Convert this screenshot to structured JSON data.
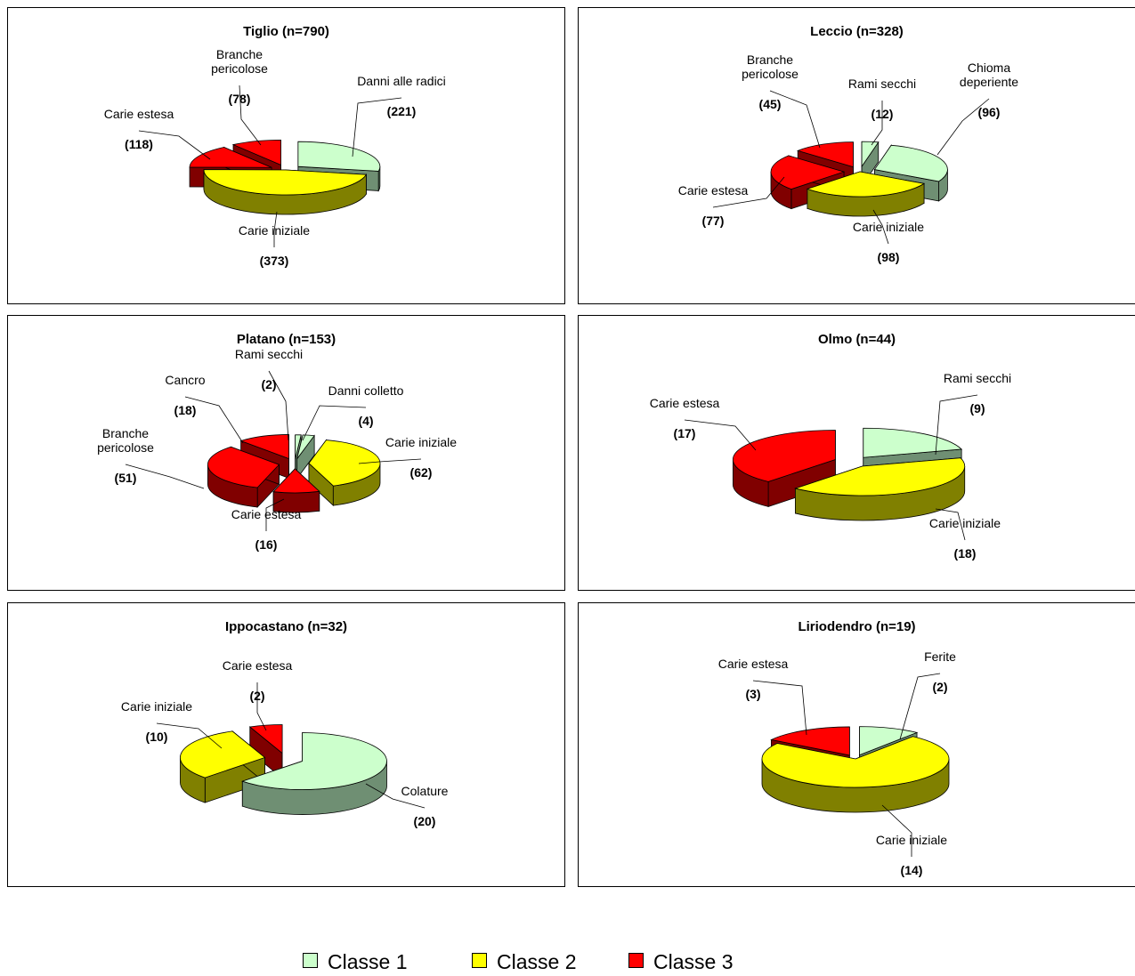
{
  "colors": {
    "Classe 1": {
      "top": "#ccffcc",
      "side": "#6f8f73"
    },
    "Classe 2": {
      "top": "#ffff00",
      "side": "#808000"
    },
    "Classe 3": {
      "top": "#ff0000",
      "side": "#800000"
    }
  },
  "legend": [
    {
      "label": "Classe 1",
      "cls": "Classe 1"
    },
    {
      "label": "Classe 2",
      "cls": "Classe 2"
    },
    {
      "label": "Classe 3",
      "cls": "Classe 3"
    }
  ],
  "chart_data": [
    {
      "type": "pie",
      "title": "Tiglio (n=790)",
      "slices": [
        {
          "name": "Danni alle radici",
          "value": 221,
          "value_label": "(221)",
          "cls": "Classe 1"
        },
        {
          "name": "Carie iniziale",
          "value": 373,
          "value_label": "(373)",
          "cls": "Classe 2"
        },
        {
          "name": "Carie estesa",
          "value": 118,
          "value_label": "(118)",
          "cls": "Classe 3"
        },
        {
          "name": "Branche pericolose",
          "value": 78,
          "value_label": "(78)",
          "cls": "Classe 3"
        }
      ]
    },
    {
      "type": "pie",
      "title": "Leccio (n=328)",
      "slices": [
        {
          "name": "Rami secchi",
          "value": 12,
          "value_label": "(12)",
          "cls": "Classe 1"
        },
        {
          "name": "Chioma deperiente",
          "value": 96,
          "value_label": "(96)",
          "cls": "Classe 1"
        },
        {
          "name": "Carie iniziale",
          "value": 98,
          "value_label": "(98)",
          "cls": "Classe 2"
        },
        {
          "name": "Carie estesa",
          "value": 77,
          "value_label": "(77)",
          "cls": "Classe 3"
        },
        {
          "name": "Branche pericolose",
          "value": 45,
          "value_label": "(45)",
          "cls": "Classe 3"
        }
      ]
    },
    {
      "type": "pie",
      "title": "Platano (n=153)",
      "slices": [
        {
          "name": "Rami secchi",
          "value": 2,
          "value_label": "(2)",
          "cls": "Classe 1"
        },
        {
          "name": "Danni colletto",
          "value": 4,
          "value_label": "(4)",
          "cls": "Classe 1"
        },
        {
          "name": "Carie iniziale",
          "value": 62,
          "value_label": "(62)",
          "cls": "Classe 2"
        },
        {
          "name": "Carie estesa",
          "value": 16,
          "value_label": "(16)",
          "cls": "Classe 3"
        },
        {
          "name": "Branche pericolose",
          "value": 51,
          "value_label": "(51)",
          "cls": "Classe 3"
        },
        {
          "name": "Cancro",
          "value": 18,
          "value_label": "(18)",
          "cls": "Classe 3"
        }
      ]
    },
    {
      "type": "pie",
      "title": "Olmo (n=44)",
      "slices": [
        {
          "name": "Rami secchi",
          "value": 9,
          "value_label": "(9)",
          "cls": "Classe 1"
        },
        {
          "name": "Carie iniziale",
          "value": 18,
          "value_label": "(18)",
          "cls": "Classe 2"
        },
        {
          "name": "Carie estesa",
          "value": 17,
          "value_label": "(17)",
          "cls": "Classe 3"
        }
      ]
    },
    {
      "type": "pie",
      "title": "Ippocastano (n=32)",
      "slices": [
        {
          "name": "Colature",
          "value": 20,
          "value_label": "(20)",
          "cls": "Classe 1"
        },
        {
          "name": "Carie iniziale",
          "value": 10,
          "value_label": "(10)",
          "cls": "Classe 2"
        },
        {
          "name": "Carie estesa",
          "value": 2,
          "value_label": "(2)",
          "cls": "Classe 3"
        }
      ]
    },
    {
      "type": "pie",
      "title": "Liriodendro (n=19)",
      "slices": [
        {
          "name": "Ferite",
          "value": 2,
          "value_label": "(2)",
          "cls": "Classe 1"
        },
        {
          "name": "Carie iniziale",
          "value": 14,
          "value_label": "(14)",
          "cls": "Classe 2"
        },
        {
          "name": "Carie estesa",
          "value": 3,
          "value_label": "(3)",
          "cls": "Classe 3"
        }
      ]
    }
  ]
}
